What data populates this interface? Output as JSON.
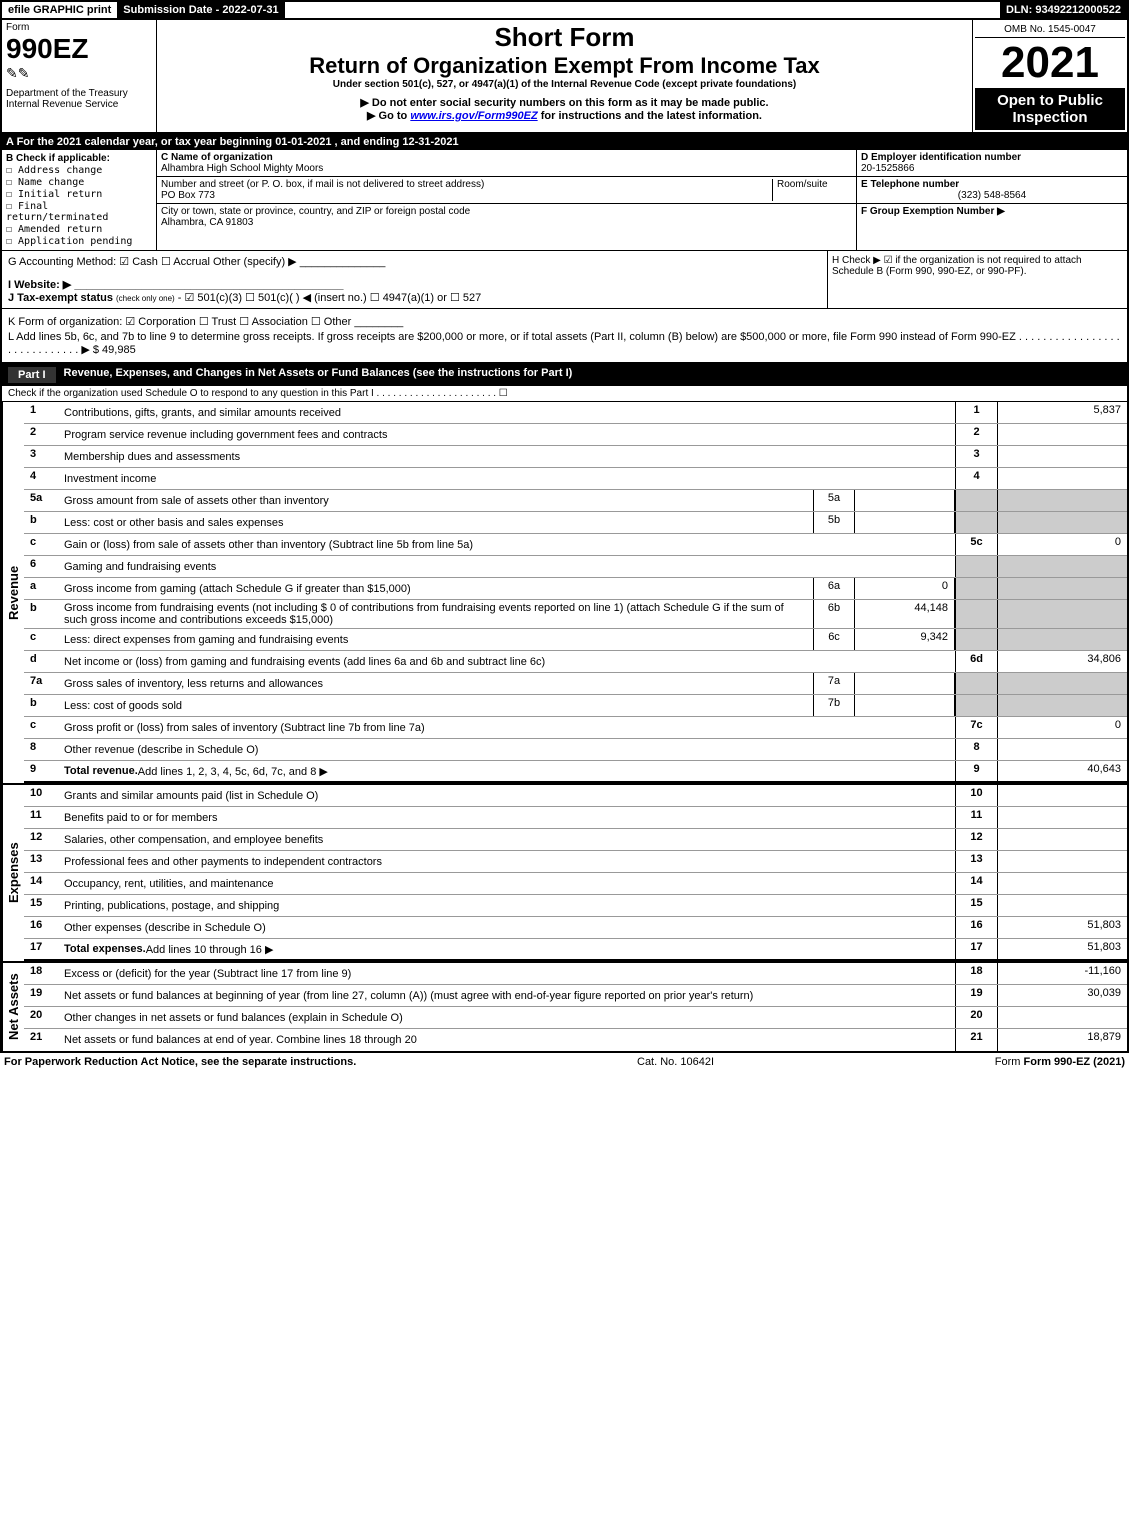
{
  "topbar": {
    "efile": "efile GRAPHIC print",
    "subdate": "Submission Date - 2022-07-31",
    "dln": "DLN: 93492212000522"
  },
  "header": {
    "form_label": "Form",
    "form_number": "990EZ",
    "dept": "Department of the Treasury",
    "irs": "Internal Revenue Service",
    "short_form": "Short Form",
    "return_title": "Return of Organization Exempt From Income Tax",
    "under": "Under section 501(c), 527, or 4947(a)(1) of the Internal Revenue Code (except private foundations)",
    "note1": "▶ Do not enter social security numbers on this form as it may be made public.",
    "note2_pre": "▶ Go to ",
    "note2_link": "www.irs.gov/Form990EZ",
    "note2_post": " for instructions and the latest information.",
    "omb": "OMB No. 1545-0047",
    "year": "2021",
    "open": "Open to Public Inspection"
  },
  "A": "A  For the 2021 calendar year, or tax year beginning 01-01-2021 , and ending 12-31-2021",
  "B": {
    "title": "B  Check if applicable:",
    "opts": [
      "☐ Address change",
      "☐ Name change",
      "☐ Initial return",
      "☐ Final return/terminated",
      "☐ Amended return",
      "☐ Application pending"
    ]
  },
  "C": {
    "name_lbl": "C Name of organization",
    "name": "Alhambra High School Mighty Moors",
    "street_lbl": "Number and street (or P. O. box, if mail is not delivered to street address)",
    "room_lbl": "Room/suite",
    "street": "PO Box 773",
    "city_lbl": "City or town, state or province, country, and ZIP or foreign postal code",
    "city": "Alhambra, CA  91803"
  },
  "D": {
    "lbl": "D Employer identification number",
    "val": "20-1525866"
  },
  "E": {
    "lbl": "E Telephone number",
    "val": "(323) 548-8564"
  },
  "F": {
    "lbl": "F Group Exemption Number  ▶",
    "val": ""
  },
  "G": "G Accounting Method:  ☑ Cash  ☐ Accrual  Other (specify) ▶ ______________",
  "H": "H  Check ▶ ☑ if the organization is not required to attach Schedule B (Form 990, 990-EZ, or 990-PF).",
  "I": "I Website: ▶ ____________________________________________",
  "J_pre": "J Tax-exempt status ",
  "J_small": "(check only one)",
  "J_rest": " - ☑ 501(c)(3) ☐ 501(c)(  ) ◀ (insert no.) ☐ 4947(a)(1) or ☐ 527",
  "K": "K Form of organization:  ☑ Corporation  ☐ Trust  ☐ Association  ☐ Other ________",
  "L": "L Add lines 5b, 6c, and 7b to line 9 to determine gross receipts. If gross receipts are $200,000 or more, or if total assets (Part II, column (B) below) are $500,000 or more, file Form 990 instead of Form 990-EZ  .  .  .  .  .  .  .  .  .  .  .  .  .  .  .  .  .  .  .  .  .  .  .  .  .  .  .  .  .  ▶ $ 49,985",
  "partI": {
    "label": "Part I",
    "title": "Revenue, Expenses, and Changes in Net Assets or Fund Balances (see the instructions for Part I)",
    "sub": "Check if the organization used Schedule O to respond to any question in this Part I .  .  .  .  .  .  .  .  .  .  .  .  .  .  .  .  .  .  .  .  .  .  ☐"
  },
  "sections": {
    "revenue_label": "Revenue",
    "expenses_label": "Expenses",
    "netassets_label": "Net Assets"
  },
  "lines": [
    {
      "n": "1",
      "d": "Contributions, gifts, grants, and similar amounts received",
      "box": "1",
      "val": "5,837"
    },
    {
      "n": "2",
      "d": "Program service revenue including government fees and contracts",
      "box": "2",
      "val": ""
    },
    {
      "n": "3",
      "d": "Membership dues and assessments",
      "box": "3",
      "val": ""
    },
    {
      "n": "4",
      "d": "Investment income",
      "box": "4",
      "val": ""
    },
    {
      "n": "5a",
      "d": "Gross amount from sale of assets other than inventory",
      "mid": "5a",
      "midval": "",
      "gray": true
    },
    {
      "n": "b",
      "d": "Less: cost or other basis and sales expenses",
      "mid": "5b",
      "midval": "",
      "gray": true
    },
    {
      "n": "c",
      "d": "Gain or (loss) from sale of assets other than inventory (Subtract line 5b from line 5a)",
      "box": "5c",
      "val": "0"
    },
    {
      "n": "6",
      "d": "Gaming and fundraising events",
      "gray": true
    },
    {
      "n": "a",
      "d": "Gross income from gaming (attach Schedule G if greater than $15,000)",
      "mid": "6a",
      "midval": "0",
      "gray": true
    },
    {
      "n": "b",
      "d": "Gross income from fundraising events (not including $  0           of contributions from fundraising events reported on line 1) (attach Schedule G if the sum of such gross income and contributions exceeds $15,000)",
      "mid": "6b",
      "midval": "44,148",
      "gray": true
    },
    {
      "n": "c",
      "d": "Less: direct expenses from gaming and fundraising events",
      "mid": "6c",
      "midval": "9,342",
      "gray": true
    },
    {
      "n": "d",
      "d": "Net income or (loss) from gaming and fundraising events (add lines 6a and 6b and subtract line 6c)",
      "box": "6d",
      "val": "34,806"
    },
    {
      "n": "7a",
      "d": "Gross sales of inventory, less returns and allowances",
      "mid": "7a",
      "midval": "",
      "gray": true
    },
    {
      "n": "b",
      "d": "Less: cost of goods sold",
      "mid": "7b",
      "midval": "",
      "gray": true
    },
    {
      "n": "c",
      "d": "Gross profit or (loss) from sales of inventory (Subtract line 7b from line 7a)",
      "box": "7c",
      "val": "0"
    },
    {
      "n": "8",
      "d": "Other revenue (describe in Schedule O)",
      "box": "8",
      "val": ""
    },
    {
      "n": "9",
      "d": "Total revenue. Add lines 1, 2, 3, 4, 5c, 6d, 7c, and 8    ▶",
      "box": "9",
      "val": "40,643",
      "bold": true,
      "catend": true
    }
  ],
  "exp_lines": [
    {
      "n": "10",
      "d": "Grants and similar amounts paid (list in Schedule O)",
      "box": "10",
      "val": ""
    },
    {
      "n": "11",
      "d": "Benefits paid to or for members",
      "box": "11",
      "val": ""
    },
    {
      "n": "12",
      "d": "Salaries, other compensation, and employee benefits",
      "box": "12",
      "val": ""
    },
    {
      "n": "13",
      "d": "Professional fees and other payments to independent contractors",
      "box": "13",
      "val": ""
    },
    {
      "n": "14",
      "d": "Occupancy, rent, utilities, and maintenance",
      "box": "14",
      "val": ""
    },
    {
      "n": "15",
      "d": "Printing, publications, postage, and shipping",
      "box": "15",
      "val": ""
    },
    {
      "n": "16",
      "d": "Other expenses (describe in Schedule O)",
      "box": "16",
      "val": "51,803"
    },
    {
      "n": "17",
      "d": "Total expenses. Add lines 10 through 16    ▶",
      "box": "17",
      "val": "51,803",
      "bold": true,
      "catend": true
    }
  ],
  "na_lines": [
    {
      "n": "18",
      "d": "Excess or (deficit) for the year (Subtract line 17 from line 9)",
      "box": "18",
      "val": "-11,160"
    },
    {
      "n": "19",
      "d": "Net assets or fund balances at beginning of year (from line 27, column (A)) (must agree with end-of-year figure reported on prior year's return)",
      "box": "19",
      "val": "30,039"
    },
    {
      "n": "20",
      "d": "Other changes in net assets or fund balances (explain in Schedule O)",
      "box": "20",
      "val": ""
    },
    {
      "n": "21",
      "d": "Net assets or fund balances at end of year. Combine lines 18 through 20",
      "box": "21",
      "val": "18,879"
    }
  ],
  "footer": {
    "pra": "For Paperwork Reduction Act Notice, see the separate instructions.",
    "cat": "Cat. No. 10642I",
    "form": "Form 990-EZ (2021)"
  }
}
